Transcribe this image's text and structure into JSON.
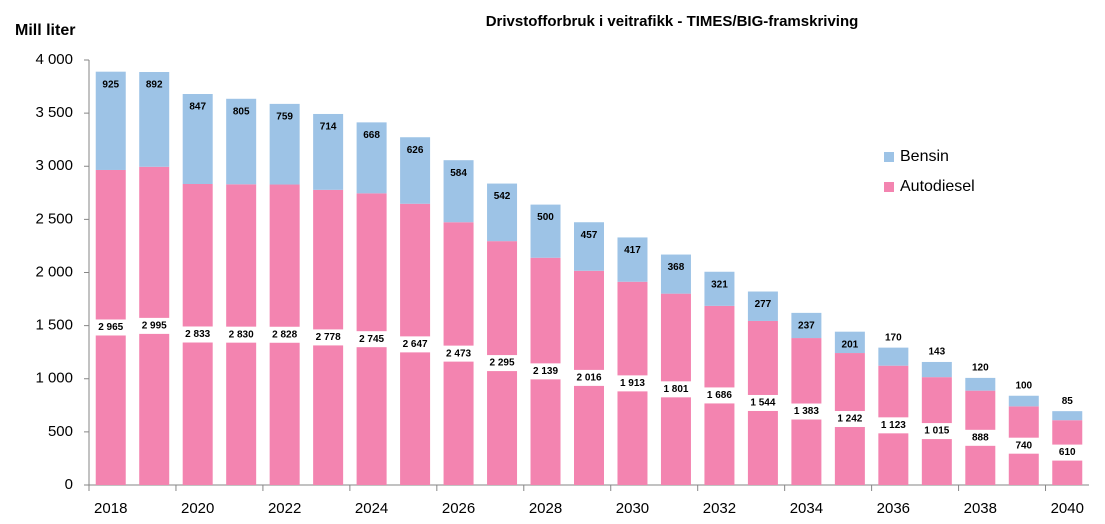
{
  "chart_data": {
    "type": "stacked_bar",
    "title": "Drivstofforbruk i veitrafikk - TIMES/BIG-framskriving",
    "ylabel": "Mill liter",
    "categories": [
      "2018",
      null,
      "2020",
      null,
      "2022",
      null,
      "2024",
      null,
      "2026",
      null,
      "2028",
      null,
      "2030",
      null,
      "2032",
      null,
      "2034",
      null,
      "2036",
      null,
      "2038",
      null,
      "2040"
    ],
    "series": [
      {
        "name": "Autodiesel",
        "color": "#f384b0",
        "values": [
          2965,
          2995,
          2833,
          2830,
          2828,
          2778,
          2745,
          2647,
          2473,
          2295,
          2139,
          2016,
          1913,
          1801,
          1686,
          1544,
          1383,
          1242,
          1123,
          1015,
          888,
          740,
          610
        ],
        "value_labels": [
          "2 965",
          "2 995",
          "2 833",
          "2 830",
          "2 828",
          "2 778",
          "2 745",
          "2 647",
          "2 473",
          "2 295",
          "2 139",
          "2 016",
          "1 913",
          "1 801",
          "1 686",
          "1 544",
          "1 383",
          "1 242",
          "1 123",
          "1 015",
          "888",
          "740",
          "610"
        ]
      },
      {
        "name": "Bensin",
        "color": "#9dc3e6",
        "values": [
          925,
          892,
          847,
          805,
          759,
          714,
          668,
          626,
          584,
          542,
          500,
          457,
          417,
          368,
          321,
          277,
          237,
          201,
          170,
          143,
          120,
          100,
          85
        ]
      }
    ],
    "ylim": [
      0,
      4000
    ],
    "yticks": [
      0,
      500,
      {
        "value": 1000,
        "label": "1 000"
      },
      {
        "value": 1500,
        "label": "1 500"
      },
      {
        "value": 2000,
        "label": "2 000"
      },
      {
        "value": 2500,
        "label": "2 500"
      },
      {
        "value": 3000,
        "label": "3 000"
      },
      {
        "value": 3500,
        "label": "3 500"
      },
      {
        "value": 4000,
        "label": "4 000"
      }
    ],
    "grid": false,
    "legend": "right"
  }
}
